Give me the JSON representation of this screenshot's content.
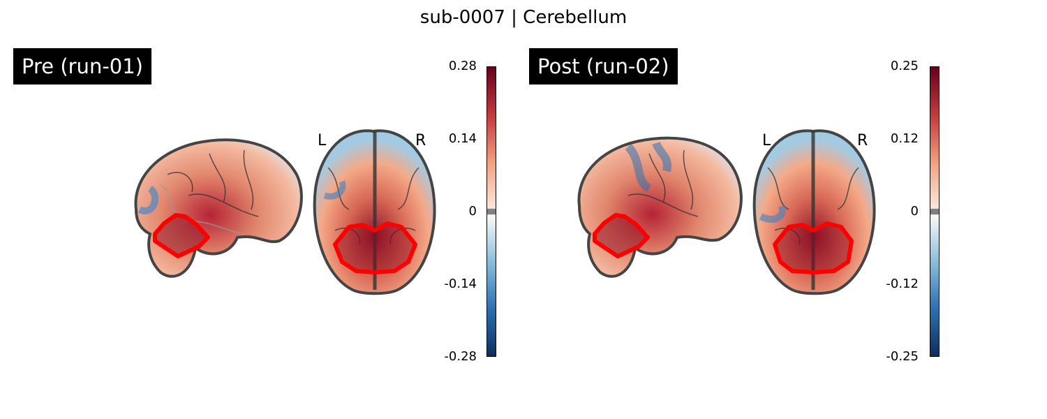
{
  "figure": {
    "title": "sub-0007 | Cerebellum"
  },
  "panels": [
    {
      "label": "Pre (run-01)",
      "orientation": {
        "left": "L",
        "right": "R"
      },
      "colorbar": {
        "ticks": [
          "0.28",
          "0.14",
          "0",
          "-0.14",
          "-0.28"
        ],
        "vmin": -0.28,
        "vmax": 0.28
      }
    },
    {
      "label": "Post (run-02)",
      "orientation": {
        "left": "L",
        "right": "R"
      },
      "colorbar": {
        "ticks": [
          "0.25",
          "0.12",
          "0",
          "-0.12",
          "-0.25"
        ],
        "vmin": -0.25,
        "vmax": 0.25
      }
    }
  ],
  "colors": {
    "roi_outline": "#ff0000",
    "brain_outline": "#3a3a3a",
    "colormap": [
      "#0a2f5e",
      "#2f73b3",
      "#92c4de",
      "#f7f7f7",
      "#f4a582",
      "#c43c3c",
      "#67001f"
    ]
  }
}
